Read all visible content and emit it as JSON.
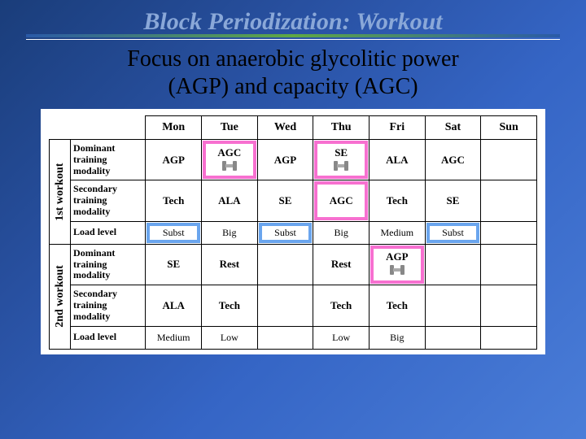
{
  "title": "Block Periodization: Workout",
  "subtitle_line1": "Focus on anaerobic glycolitic power",
  "subtitle_line2": "(AGP) and capacity (AGC)",
  "days": [
    "Mon",
    "Tue",
    "Wed",
    "Thu",
    "Fri",
    "Sat",
    "Sun"
  ],
  "groups": [
    {
      "label": "1st workout"
    },
    {
      "label": "2nd workout"
    }
  ],
  "rowlabels": {
    "dom": "Dominant training modality",
    "sec": "Secondary training modality",
    "load": "Load level"
  },
  "w1": {
    "dom": [
      "AGP",
      "AGC",
      "AGP",
      "SE",
      "ALA",
      "AGC",
      ""
    ],
    "sec": [
      "Tech",
      "ALA",
      "SE",
      "AGC",
      "Tech",
      "SE",
      ""
    ],
    "load": [
      "Subst",
      "Big",
      "Subst",
      "Big",
      "Medium",
      "Subst",
      ""
    ]
  },
  "w2": {
    "dom": [
      "SE",
      "Rest",
      "",
      "Rest",
      "AGP",
      "",
      ""
    ],
    "sec": [
      "ALA",
      "Tech",
      "",
      "Tech",
      "Tech",
      "",
      ""
    ],
    "load": [
      "Medium",
      "Low",
      "",
      "Low",
      "Big",
      "",
      ""
    ]
  },
  "colors": {
    "pink": "#f770d0",
    "blue": "#6aa5ee",
    "bg_start": "#1a3d7a",
    "bg_end": "#4a7dd8",
    "title": "#8aa8d8"
  },
  "highlights": {
    "pink_cells": [
      {
        "row": "w1.dom",
        "col": 1,
        "icon": true
      },
      {
        "row": "w1.dom",
        "col": 3,
        "icon": true
      },
      {
        "row": "w1.sec",
        "col": 3,
        "icon": false
      },
      {
        "row": "w2.dom",
        "col": 4,
        "icon": true
      }
    ],
    "blue_cells": [
      {
        "row": "w1.load",
        "col": 0
      },
      {
        "row": "w1.load",
        "col": 2
      },
      {
        "row": "w1.load",
        "col": 5
      }
    ]
  }
}
